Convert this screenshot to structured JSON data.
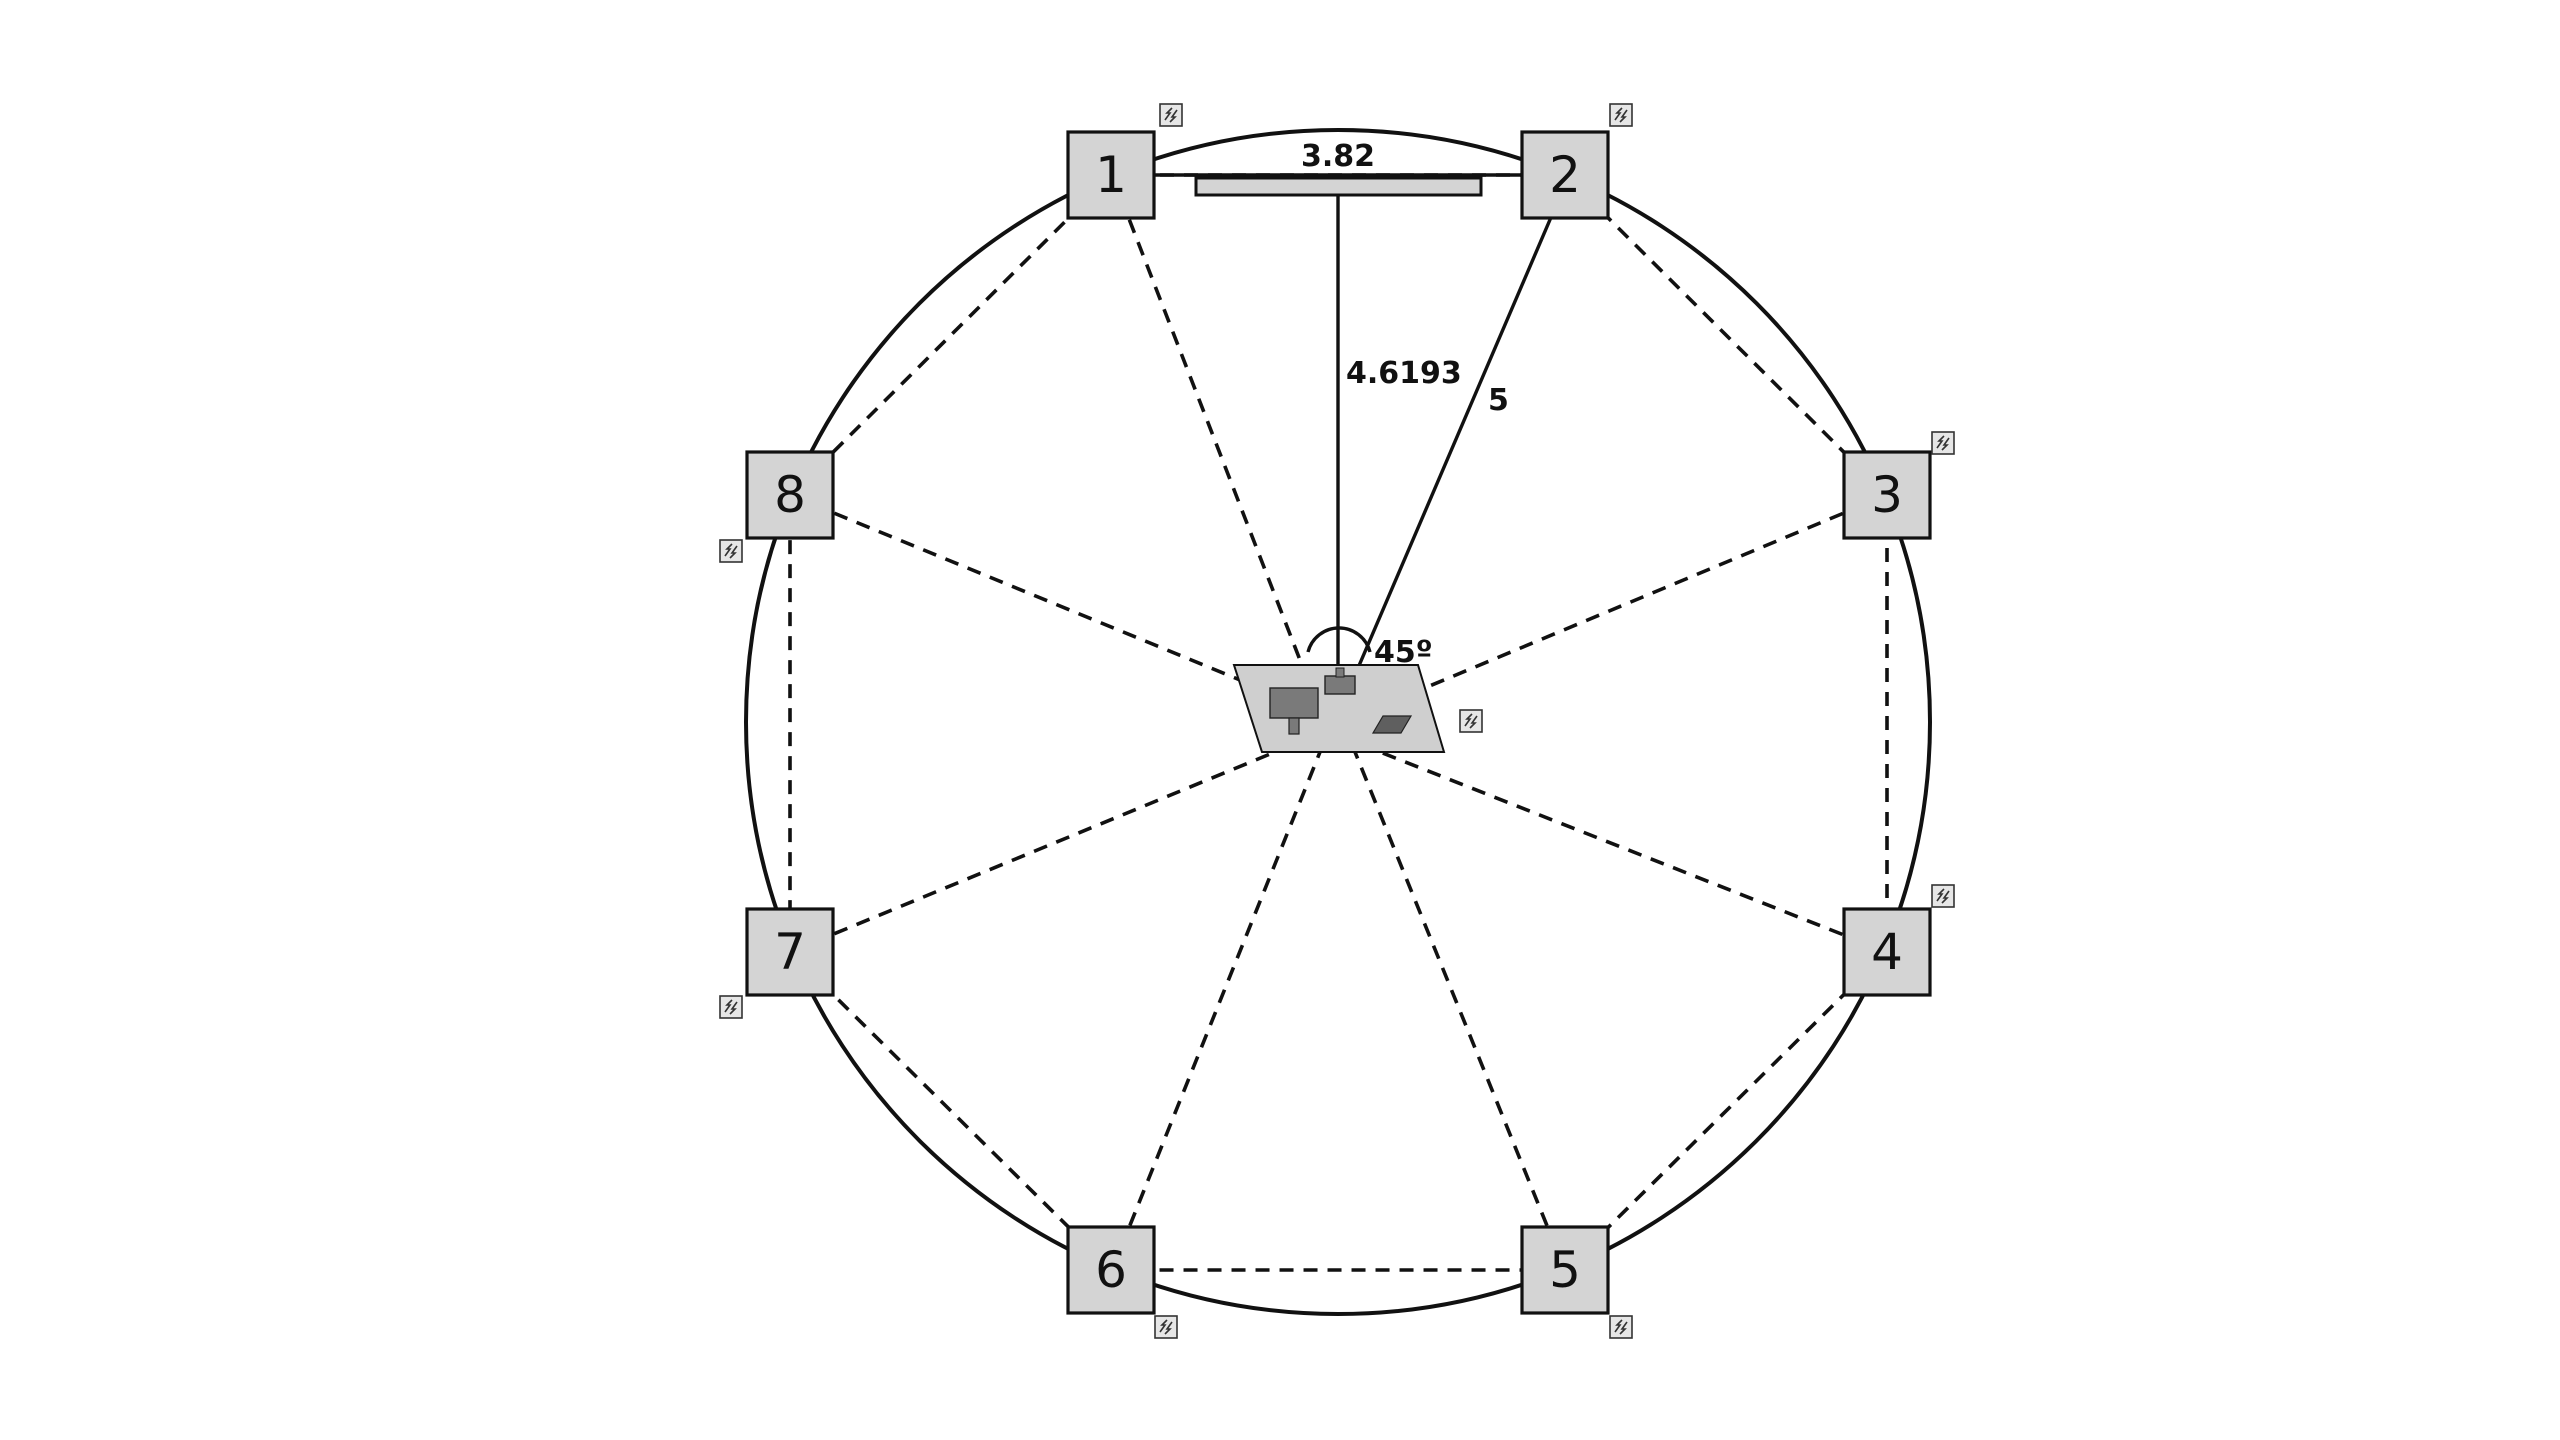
{
  "diagram": {
    "nodes": [
      {
        "id": "1",
        "label": "1"
      },
      {
        "id": "2",
        "label": "2"
      },
      {
        "id": "3",
        "label": "3"
      },
      {
        "id": "4",
        "label": "4"
      },
      {
        "id": "5",
        "label": "5"
      },
      {
        "id": "6",
        "label": "6"
      },
      {
        "id": "7",
        "label": "7"
      },
      {
        "id": "8",
        "label": "8"
      }
    ],
    "measurements": {
      "spacing": "3.82",
      "perpendicular": "4.6193",
      "radius": "5",
      "angle": "45º"
    },
    "icons": {
      "node_badge": "link-icon",
      "center_device": "platform-icon"
    },
    "colors": {
      "stroke": "#111111",
      "node_fill": "#d4d4d4",
      "platform_fill": "#cfcfcf",
      "component_fill": "#7a7a7a"
    }
  }
}
